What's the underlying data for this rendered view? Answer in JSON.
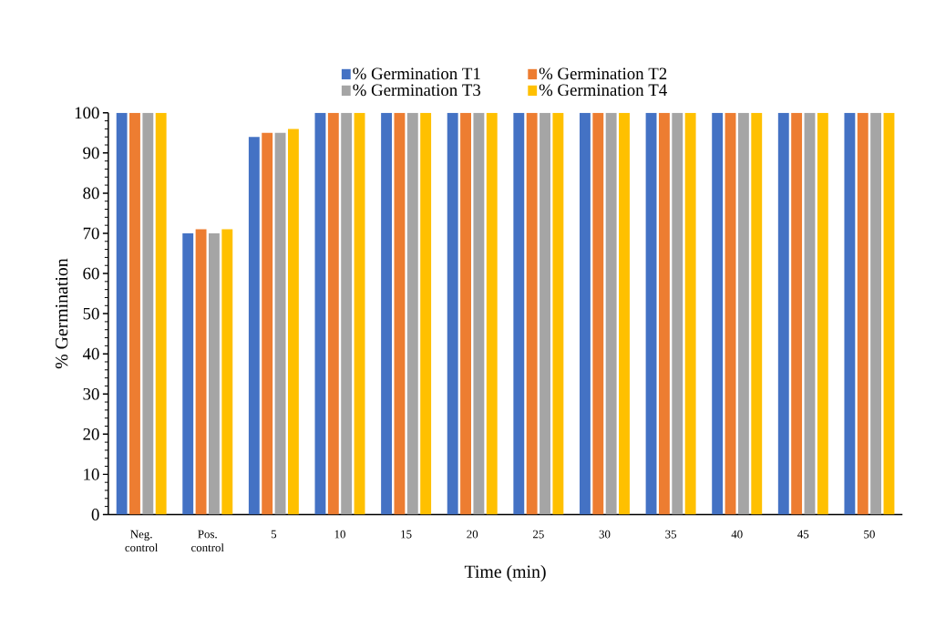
{
  "chart_data": {
    "type": "bar",
    "xlabel": "Time (min)",
    "ylabel": "%  Germination",
    "categories": [
      "Neg. control",
      "Pos. control",
      "5",
      "10",
      "15",
      "20",
      "25",
      "30",
      "35",
      "40",
      "45",
      "50"
    ],
    "series": [
      {
        "name": "% Germination T1",
        "color": "#4472c4",
        "values": [
          100,
          70,
          94,
          100,
          100,
          100,
          100,
          100,
          100,
          100,
          100,
          100
        ]
      },
      {
        "name": "% Germination T2",
        "color": "#ed7d31",
        "values": [
          100,
          71,
          95,
          100,
          100,
          100,
          100,
          100,
          100,
          100,
          100,
          100
        ]
      },
      {
        "name": "% Germination T3",
        "color": "#a5a5a5",
        "values": [
          100,
          70,
          95,
          100,
          100,
          100,
          100,
          100,
          100,
          100,
          100,
          100
        ]
      },
      {
        "name": "% Germination T4",
        "color": "#ffc000",
        "values": [
          100,
          71,
          96,
          100,
          100,
          100,
          100,
          100,
          100,
          100,
          100,
          100
        ]
      }
    ],
    "ylim": [
      0,
      100
    ],
    "yticks": [
      0,
      10,
      20,
      30,
      40,
      50,
      60,
      70,
      80,
      90,
      100
    ],
    "grid": false,
    "legend": "top"
  }
}
